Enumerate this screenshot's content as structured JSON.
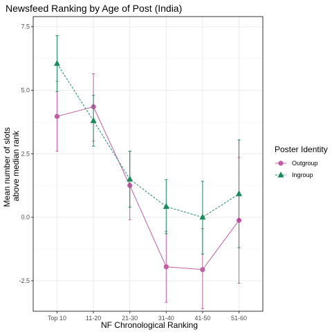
{
  "chart_data": {
    "type": "line",
    "title": "Newsfeed Ranking by Age of Post (India)",
    "xlabel": "NF Chronological Ranking",
    "ylabel_lines": [
      "Mean number of slots",
      "above median rank"
    ],
    "categories": [
      "Top 10",
      "11-20",
      "21-30",
      "31-40",
      "41-50",
      "51-60"
    ],
    "ylim": [
      -3.7,
      7.9
    ],
    "yticks": [
      -2.5,
      0.0,
      2.5,
      5.0,
      7.5
    ],
    "ytick_labels": [
      "-2.5",
      "0.0",
      "2.5",
      "5.0",
      "7.5"
    ],
    "grid": true,
    "legend": {
      "title": "Poster Identity",
      "placement": "right"
    },
    "series": [
      {
        "name": "Outgroup",
        "color": "#c15ca5",
        "marker": "circle",
        "line_style": "solid",
        "values": [
          3.97,
          4.35,
          1.25,
          -1.95,
          -2.06,
          -0.12
        ],
        "lower": [
          2.6,
          3.0,
          -0.1,
          -3.35,
          -3.6,
          -2.6
        ],
        "upper": [
          5.35,
          5.65,
          2.6,
          -0.55,
          -0.45,
          2.35
        ]
      },
      {
        "name": "Ingroup",
        "color": "#1b8a5a",
        "marker": "triangle",
        "line_style": "dashed",
        "values": [
          6.05,
          3.8,
          1.5,
          0.42,
          0.0,
          0.92
        ],
        "lower": [
          4.95,
          2.8,
          0.4,
          -0.65,
          -1.45,
          -1.2
        ],
        "upper": [
          7.15,
          4.8,
          2.6,
          1.48,
          1.42,
          3.05
        ]
      }
    ]
  }
}
